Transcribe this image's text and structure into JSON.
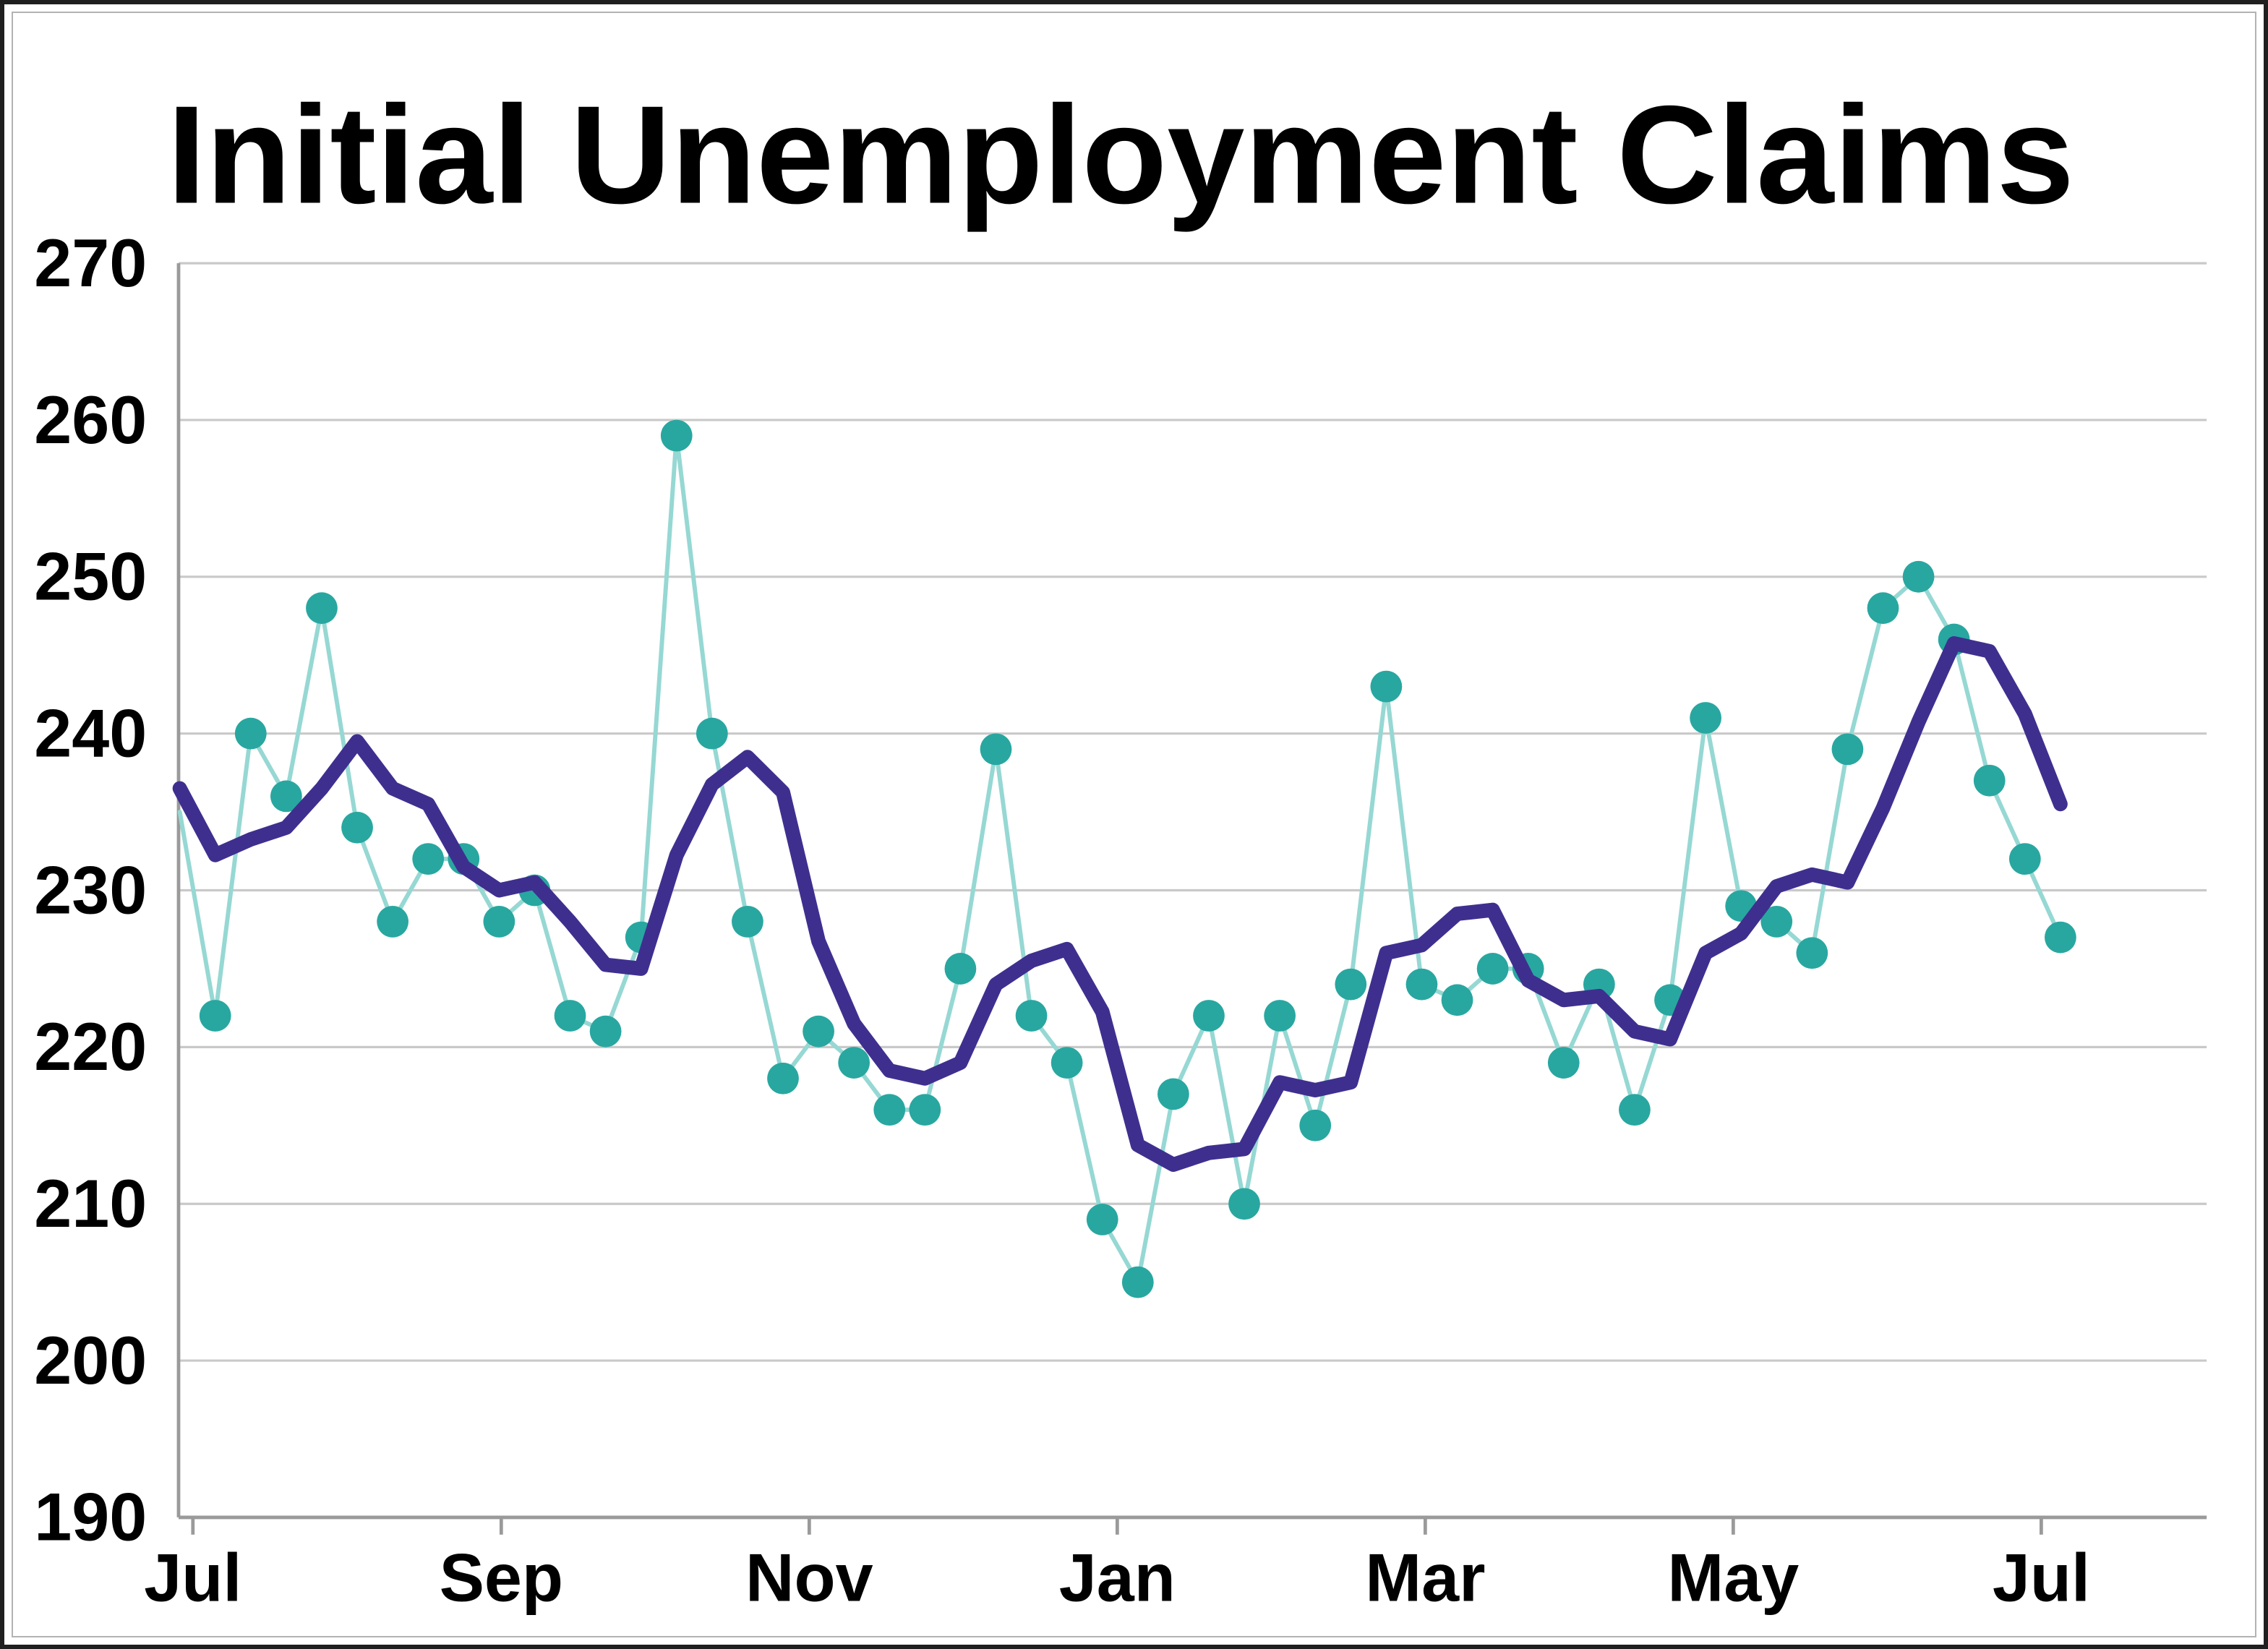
{
  "chart_data": {
    "type": "line",
    "title": "Initial Unemployment Claims",
    "xlabel": "",
    "ylabel": "",
    "grid": true,
    "legend": "none",
    "y_axis": {
      "min": 190,
      "max": 270,
      "ticks": [
        190,
        200,
        210,
        220,
        230,
        240,
        250,
        260,
        270
      ]
    },
    "x_axis": {
      "tick_labels": [
        "Jul",
        "Sep",
        "Nov",
        "Jan",
        "Mar",
        "May",
        "Jul"
      ],
      "tick_weeks": [
        0.37,
        9.06,
        17.74,
        26.42,
        35.1,
        43.78,
        52.46
      ]
    },
    "colors": {
      "weekly_marker": "#28a7a0",
      "weekly_line": "#96d8d3",
      "moving_average_line": "#3e2f8f",
      "gridline": "#c9c9c9",
      "axis": "#9a9a9a"
    },
    "series": [
      {
        "name": "weekly-initial-claims",
        "style": "line-with-markers",
        "marker_color": "#28a7a0",
        "line_color": "#96d8d3",
        "line_width": 3,
        "marker_radius": 11,
        "first_week": 1,
        "edge_point": {
          "week": 0,
          "value": 235
        },
        "values": [
          222,
          240,
          236,
          248,
          234,
          228,
          232,
          232,
          228,
          230,
          222,
          221,
          227,
          259,
          240,
          228,
          218,
          221,
          219,
          216,
          216,
          225,
          239,
          222,
          219,
          209,
          205,
          217,
          222,
          210,
          222,
          215,
          224,
          243,
          224,
          223,
          225,
          225,
          219,
          224,
          216,
          223,
          241,
          229,
          228,
          226,
          239,
          248,
          250,
          246,
          237,
          232,
          227
        ]
      },
      {
        "name": "four-week-moving-average",
        "style": "line",
        "line_color": "#3e2f8f",
        "line_width": 10,
        "first_week": 0,
        "values": [
          236.5,
          232.25,
          233.25,
          234.0,
          236.5,
          239.5,
          236.5,
          235.5,
          231.5,
          230.0,
          230.5,
          228.0,
          225.25,
          225.0,
          232.25,
          236.75,
          238.5,
          236.25,
          226.75,
          221.5,
          218.5,
          218.0,
          219.0,
          224.0,
          225.5,
          226.25,
          222.25,
          213.75,
          212.5,
          213.25,
          213.5,
          217.75,
          217.25,
          217.75,
          226.0,
          226.5,
          228.5,
          228.75,
          224.25,
          223.0,
          223.25,
          221.0,
          220.5,
          226.0,
          227.25,
          230.25,
          231.0,
          230.5,
          235.25,
          240.75,
          245.75,
          245.25,
          241.25,
          235.5
        ]
      }
    ]
  },
  "frame": {
    "background": "#ffffff",
    "outer_border_color": "#1f1f1f",
    "inner_border_color": "#b3b3b3"
  }
}
